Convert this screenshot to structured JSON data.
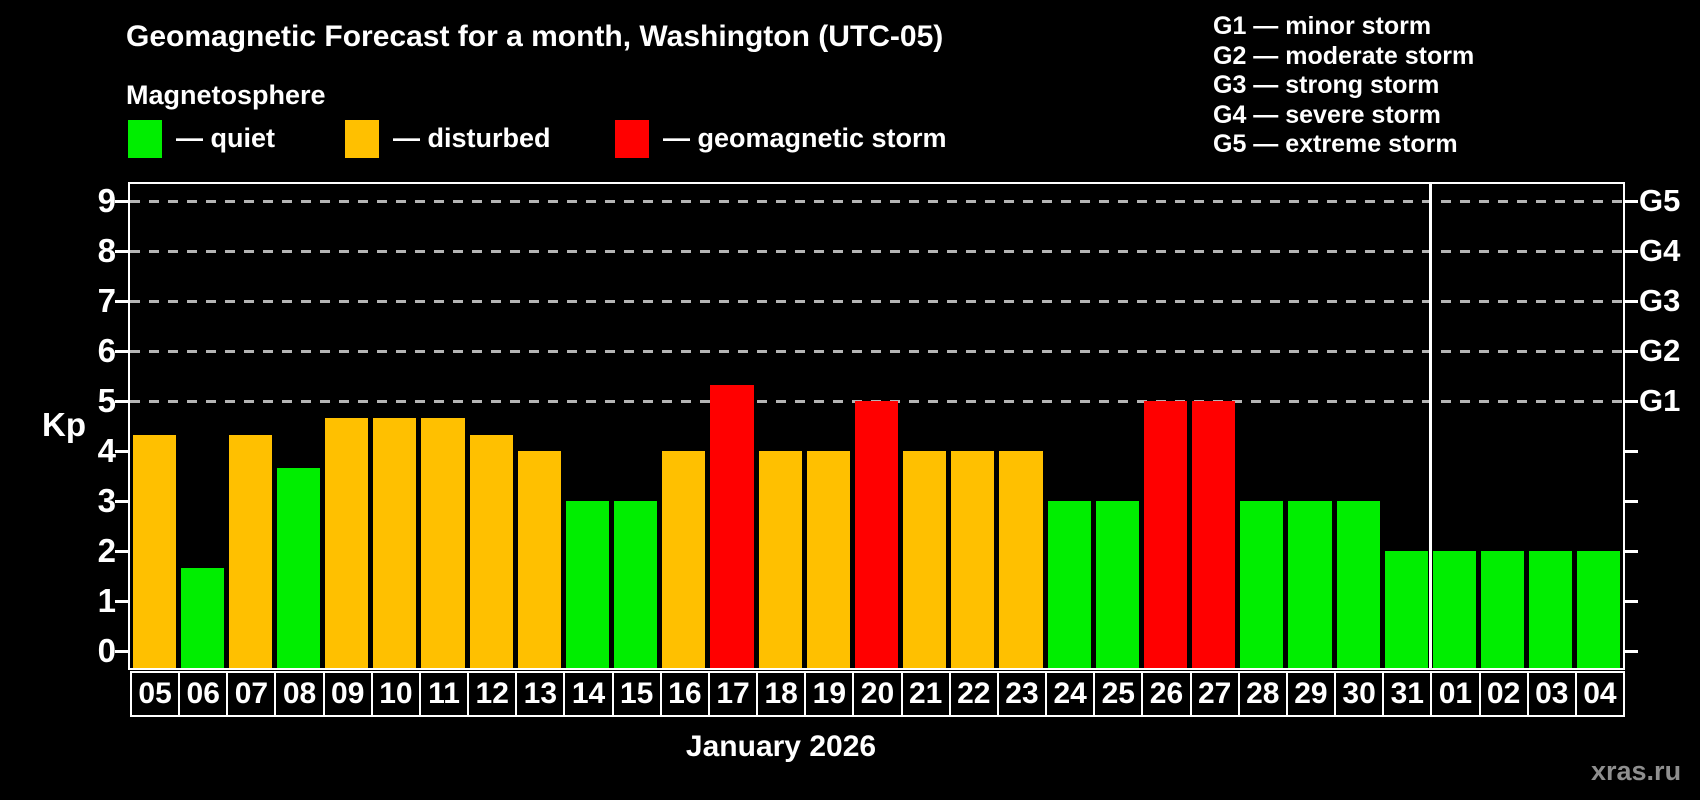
{
  "title": "Geomagnetic Forecast for a month, Washington (UTC-05)",
  "subtitle": "Magnetosphere",
  "legend": {
    "items": [
      {
        "status": "quiet",
        "label": "— quiet",
        "color": "#00ee00"
      },
      {
        "status": "disturbed",
        "label": "— disturbed",
        "color": "#ffc000"
      },
      {
        "status": "storm",
        "label": "— geomagnetic storm",
        "color": "#ff0000"
      }
    ]
  },
  "storm_scale": {
    "lines": [
      "G1 — minor storm",
      "G2 — moderate storm",
      "G3 — strong storm",
      "G4 — severe storm",
      "G5 — extreme storm"
    ]
  },
  "axis": {
    "ylabel": "Kp",
    "yticks": [
      "0",
      "1",
      "2",
      "3",
      "4",
      "5",
      "6",
      "7",
      "8",
      "9"
    ],
    "gridline_levels": [
      5,
      6,
      7,
      8,
      9
    ],
    "right_labels": [
      {
        "level": 5,
        "label": "G1"
      },
      {
        "level": 6,
        "label": "G2"
      },
      {
        "level": 7,
        "label": "G3"
      },
      {
        "level": 8,
        "label": "G4"
      },
      {
        "level": 9,
        "label": "G5"
      }
    ]
  },
  "xlabel": "January 2026",
  "watermark": "xras.ru",
  "chart_data": {
    "type": "bar",
    "title": "Geomagnetic Forecast for a month, Washington (UTC-05)",
    "xlabel": "January 2026",
    "ylabel": "Kp",
    "ylim": [
      0,
      9
    ],
    "grid": "dashed horizontal lines at Kp 5-9 (G1-G5 levels) only",
    "legend_position": "top-left",
    "categories": [
      "05",
      "06",
      "07",
      "08",
      "09",
      "10",
      "11",
      "12",
      "13",
      "14",
      "15",
      "16",
      "17",
      "18",
      "19",
      "20",
      "21",
      "22",
      "23",
      "24",
      "25",
      "26",
      "27",
      "28",
      "29",
      "30",
      "31",
      "01",
      "02",
      "03",
      "04"
    ],
    "values": [
      4.33,
      1.67,
      4.33,
      3.67,
      4.67,
      4.67,
      4.67,
      4.33,
      4.0,
      3.0,
      3.0,
      4.0,
      5.33,
      4.0,
      4.0,
      5.0,
      4.0,
      4.0,
      4.0,
      3.0,
      3.0,
      5.0,
      5.0,
      3.0,
      3.0,
      3.0,
      2.0,
      2.0,
      2.0,
      2.0,
      2.0
    ],
    "statuses": [
      "disturbed",
      "quiet",
      "disturbed",
      "quiet",
      "disturbed",
      "disturbed",
      "disturbed",
      "disturbed",
      "disturbed",
      "quiet",
      "quiet",
      "disturbed",
      "storm",
      "disturbed",
      "disturbed",
      "storm",
      "disturbed",
      "disturbed",
      "disturbed",
      "quiet",
      "quiet",
      "storm",
      "storm",
      "quiet",
      "quiet",
      "quiet",
      "quiet",
      "quiet",
      "quiet",
      "quiet",
      "quiet"
    ],
    "status_colors": {
      "quiet": "#00ee00",
      "disturbed": "#ffc000",
      "storm": "#ff0000"
    },
    "right_axis": {
      "G1": 5,
      "G2": 6,
      "G3": 7,
      "G4": 8,
      "G5": 9
    },
    "separator_index": 27,
    "month_separator_note": "vertical white line between day 31 and day 01"
  }
}
